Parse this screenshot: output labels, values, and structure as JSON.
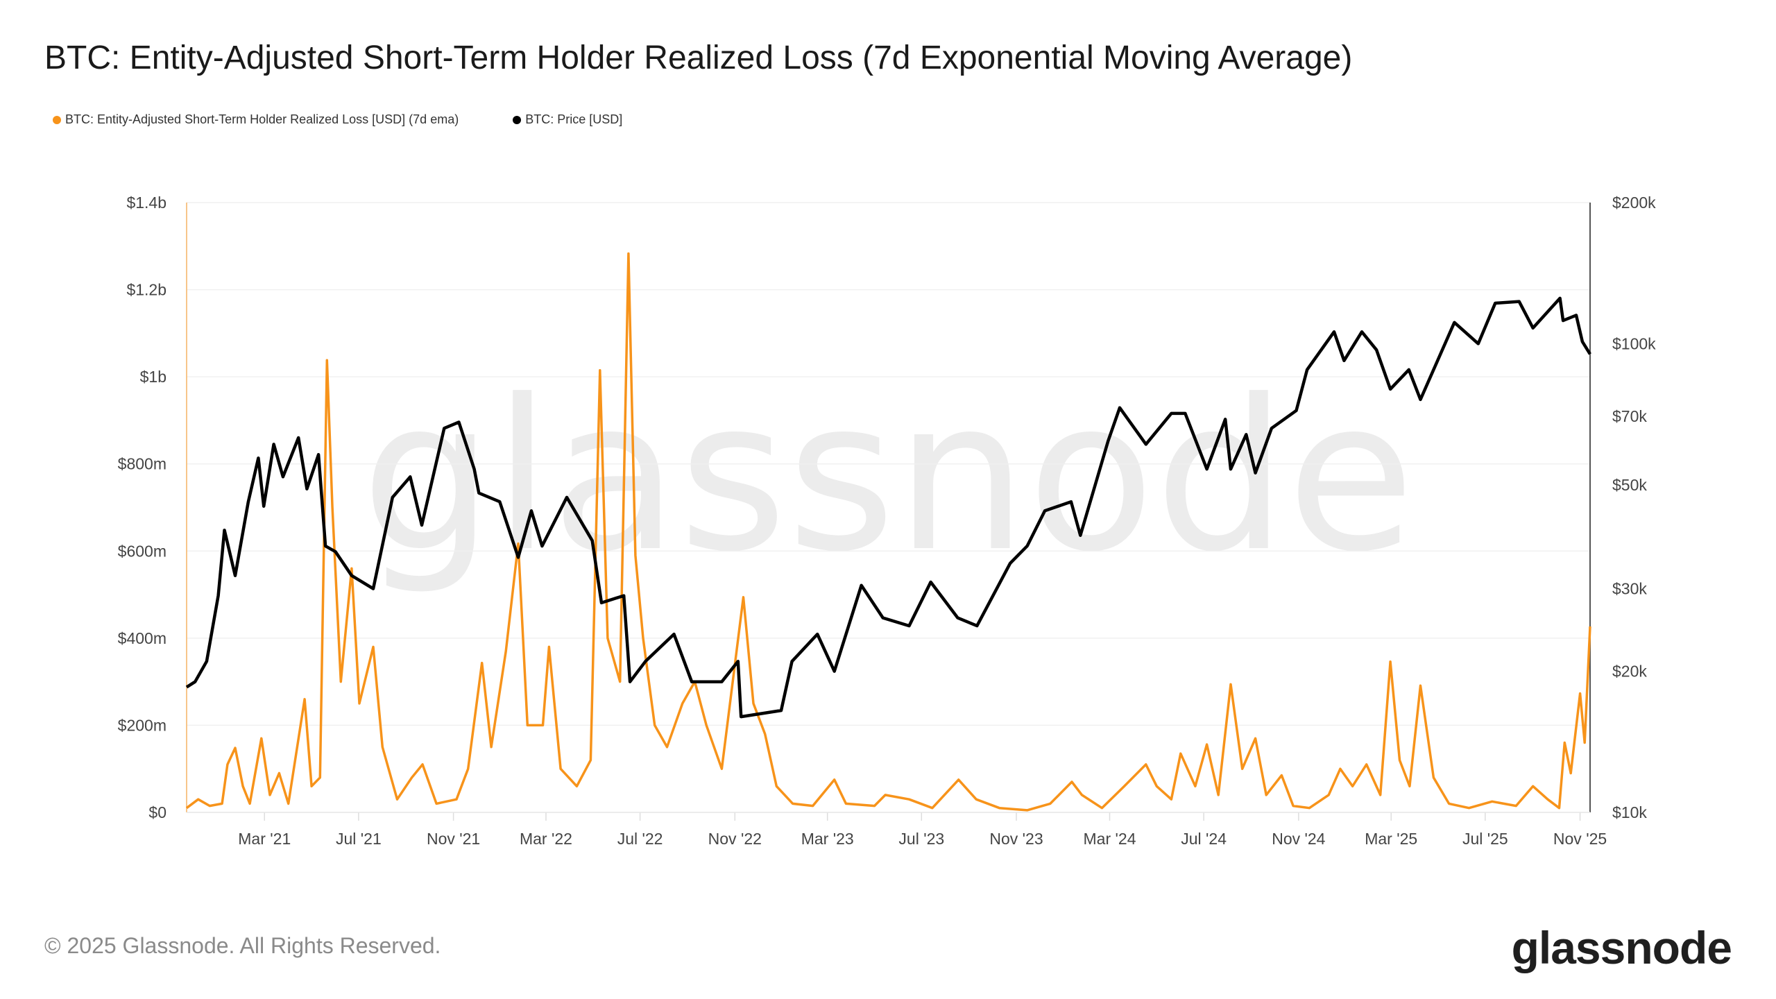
{
  "title": "BTC: Entity-Adjusted Short-Term Holder Realized Loss (7d Exponential Moving Average)",
  "footer": "© 2025 Glassnode. All Rights Reserved.",
  "logo": "glassnode",
  "watermark": "glassnode",
  "chart_data": {
    "type": "line",
    "title": "BTC: Entity-Adjusted Short-Term Holder Realized Loss (7d Exponential Moving Average)",
    "legend_placement": "top-left",
    "grid": true,
    "x_range": [
      "2020-11-20",
      "2025-11-14"
    ],
    "x_ticks": [
      {
        "date": "2021-03-01",
        "label": "Mar '21"
      },
      {
        "date": "2021-07-01",
        "label": "Jul '21"
      },
      {
        "date": "2021-11-01",
        "label": "Nov '21"
      },
      {
        "date": "2022-03-01",
        "label": "Mar '22"
      },
      {
        "date": "2022-07-01",
        "label": "Jul '22"
      },
      {
        "date": "2022-11-01",
        "label": "Nov '22"
      },
      {
        "date": "2023-03-01",
        "label": "Mar '23"
      },
      {
        "date": "2023-07-01",
        "label": "Jul '23"
      },
      {
        "date": "2023-11-01",
        "label": "Nov '23"
      },
      {
        "date": "2024-03-01",
        "label": "Mar '24"
      },
      {
        "date": "2024-07-01",
        "label": "Jul '24"
      },
      {
        "date": "2024-11-01",
        "label": "Nov '24"
      },
      {
        "date": "2025-03-01",
        "label": "Mar '25"
      },
      {
        "date": "2025-07-01",
        "label": "Jul '25"
      },
      {
        "date": "2025-11-01",
        "label": "Nov '25"
      }
    ],
    "y_left": {
      "unit": "USD millions",
      "range": [
        0,
        1400
      ],
      "scale": "linear",
      "ticks": [
        {
          "v": 0,
          "label": "$0"
        },
        {
          "v": 200,
          "label": "$200m"
        },
        {
          "v": 400,
          "label": "$400m"
        },
        {
          "v": 600,
          "label": "$600m"
        },
        {
          "v": 800,
          "label": "$800m"
        },
        {
          "v": 1000,
          "label": "$1b"
        },
        {
          "v": 1200,
          "label": "$1.2b"
        },
        {
          "v": 1400,
          "label": "$1.4b"
        }
      ]
    },
    "y_right": {
      "unit": "USD",
      "range": [
        10000,
        200000
      ],
      "scale": "log",
      "ticks": [
        {
          "v": 10000,
          "label": "$10k"
        },
        {
          "v": 20000,
          "label": "$20k"
        },
        {
          "v": 30000,
          "label": "$30k"
        },
        {
          "v": 50000,
          "label": "$50k"
        },
        {
          "v": 70000,
          "label": "$70k"
        },
        {
          "v": 100000,
          "label": "$100k"
        },
        {
          "v": 200000,
          "label": "$200k"
        }
      ]
    },
    "series": [
      {
        "name": "BTC: Entity-Adjusted Short-Term Holder Realized Loss [USD] (7d ema)",
        "color": "#f7931a",
        "axis": "left",
        "points": [
          [
            "2020-11-20",
            10
          ],
          [
            "2020-12-05",
            30
          ],
          [
            "2020-12-20",
            15
          ],
          [
            "2021-01-05",
            20
          ],
          [
            "2021-01-12",
            110
          ],
          [
            "2021-01-22",
            148
          ],
          [
            "2021-02-01",
            60
          ],
          [
            "2021-02-10",
            20
          ],
          [
            "2021-02-25",
            170
          ],
          [
            "2021-03-08",
            40
          ],
          [
            "2021-03-20",
            90
          ],
          [
            "2021-04-01",
            20
          ],
          [
            "2021-04-22",
            260
          ],
          [
            "2021-05-01",
            60
          ],
          [
            "2021-05-12",
            80
          ],
          [
            "2021-05-21",
            1038
          ],
          [
            "2021-05-28",
            700
          ],
          [
            "2021-06-08",
            300
          ],
          [
            "2021-06-22",
            560
          ],
          [
            "2021-07-02",
            250
          ],
          [
            "2021-07-20",
            380
          ],
          [
            "2021-08-01",
            150
          ],
          [
            "2021-08-20",
            30
          ],
          [
            "2021-09-08",
            80
          ],
          [
            "2021-09-22",
            110
          ],
          [
            "2021-10-10",
            20
          ],
          [
            "2021-11-05",
            30
          ],
          [
            "2021-11-20",
            100
          ],
          [
            "2021-12-08",
            343
          ],
          [
            "2021-12-20",
            150
          ],
          [
            "2022-01-08",
            370
          ],
          [
            "2022-01-24",
            617
          ],
          [
            "2022-02-05",
            200
          ],
          [
            "2022-02-25",
            200
          ],
          [
            "2022-03-05",
            380
          ],
          [
            "2022-03-20",
            100
          ],
          [
            "2022-04-10",
            60
          ],
          [
            "2022-04-28",
            120
          ],
          [
            "2022-05-10",
            1015
          ],
          [
            "2022-05-20",
            400
          ],
          [
            "2022-06-05",
            300
          ],
          [
            "2022-06-16",
            1283
          ],
          [
            "2022-06-25",
            590
          ],
          [
            "2022-07-05",
            400
          ],
          [
            "2022-07-20",
            200
          ],
          [
            "2022-08-05",
            150
          ],
          [
            "2022-08-25",
            250
          ],
          [
            "2022-09-10",
            300
          ],
          [
            "2022-09-25",
            200
          ],
          [
            "2022-10-15",
            100
          ],
          [
            "2022-11-12",
            494
          ],
          [
            "2022-11-25",
            250
          ],
          [
            "2022-12-10",
            180
          ],
          [
            "2022-12-25",
            60
          ],
          [
            "2023-01-15",
            20
          ],
          [
            "2023-02-10",
            15
          ],
          [
            "2023-03-10",
            75
          ],
          [
            "2023-03-25",
            20
          ],
          [
            "2023-05-01",
            15
          ],
          [
            "2023-05-15",
            40
          ],
          [
            "2023-06-15",
            30
          ],
          [
            "2023-07-15",
            10
          ],
          [
            "2023-08-18",
            75
          ],
          [
            "2023-09-10",
            30
          ],
          [
            "2023-10-10",
            10
          ],
          [
            "2023-11-15",
            5
          ],
          [
            "2023-12-15",
            20
          ],
          [
            "2024-01-12",
            70
          ],
          [
            "2024-01-25",
            40
          ],
          [
            "2024-02-20",
            10
          ],
          [
            "2024-03-20",
            60
          ],
          [
            "2024-04-17",
            110
          ],
          [
            "2024-05-01",
            60
          ],
          [
            "2024-05-20",
            30
          ],
          [
            "2024-06-01",
            135
          ],
          [
            "2024-06-20",
            60
          ],
          [
            "2024-07-05",
            156
          ],
          [
            "2024-07-20",
            40
          ],
          [
            "2024-08-05",
            294
          ],
          [
            "2024-08-20",
            100
          ],
          [
            "2024-09-06",
            170
          ],
          [
            "2024-09-20",
            40
          ],
          [
            "2024-10-10",
            85
          ],
          [
            "2024-10-25",
            15
          ],
          [
            "2024-11-15",
            10
          ],
          [
            "2024-12-10",
            40
          ],
          [
            "2024-12-25",
            100
          ],
          [
            "2025-01-10",
            60
          ],
          [
            "2025-01-28",
            110
          ],
          [
            "2025-02-15",
            40
          ],
          [
            "2025-02-28",
            346
          ],
          [
            "2025-03-12",
            120
          ],
          [
            "2025-03-25",
            60
          ],
          [
            "2025-04-08",
            291
          ],
          [
            "2025-04-25",
            80
          ],
          [
            "2025-05-15",
            20
          ],
          [
            "2025-06-10",
            10
          ],
          [
            "2025-07-10",
            25
          ],
          [
            "2025-08-10",
            15
          ],
          [
            "2025-09-01",
            60
          ],
          [
            "2025-09-20",
            30
          ],
          [
            "2025-10-05",
            10
          ],
          [
            "2025-10-12",
            160
          ],
          [
            "2025-10-20",
            90
          ],
          [
            "2025-11-01",
            273
          ],
          [
            "2025-11-07",
            160
          ],
          [
            "2025-11-14",
            427
          ]
        ]
      },
      {
        "name": "BTC: Price [USD]",
        "color": "#000000",
        "axis": "right",
        "points": [
          [
            "2020-11-20",
            18500
          ],
          [
            "2020-12-01",
            19000
          ],
          [
            "2020-12-16",
            21000
          ],
          [
            "2020-12-31",
            29000
          ],
          [
            "2021-01-08",
            40000
          ],
          [
            "2021-01-22",
            32000
          ],
          [
            "2021-02-08",
            46000
          ],
          [
            "2021-02-21",
            57000
          ],
          [
            "2021-02-28",
            45000
          ],
          [
            "2021-03-13",
            61000
          ],
          [
            "2021-03-25",
            52000
          ],
          [
            "2021-04-14",
            63000
          ],
          [
            "2021-04-25",
            49000
          ],
          [
            "2021-05-10",
            58000
          ],
          [
            "2021-05-19",
            37000
          ],
          [
            "2021-06-01",
            36000
          ],
          [
            "2021-06-22",
            32000
          ],
          [
            "2021-07-20",
            30000
          ],
          [
            "2021-08-14",
            47000
          ],
          [
            "2021-09-06",
            52000
          ],
          [
            "2021-09-21",
            41000
          ],
          [
            "2021-10-20",
            66000
          ],
          [
            "2021-11-08",
            68000
          ],
          [
            "2021-11-28",
            54000
          ],
          [
            "2021-12-04",
            48000
          ],
          [
            "2021-12-31",
            46000
          ],
          [
            "2022-01-24",
            35000
          ],
          [
            "2022-02-10",
            44000
          ],
          [
            "2022-02-24",
            37000
          ],
          [
            "2022-03-28",
            47000
          ],
          [
            "2022-04-30",
            38000
          ],
          [
            "2022-05-12",
            28000
          ],
          [
            "2022-06-10",
            29000
          ],
          [
            "2022-06-18",
            19000
          ],
          [
            "2022-07-08",
            21000
          ],
          [
            "2022-08-14",
            24000
          ],
          [
            "2022-09-06",
            19000
          ],
          [
            "2022-10-15",
            19000
          ],
          [
            "2022-11-05",
            21000
          ],
          [
            "2022-11-09",
            16000
          ],
          [
            "2022-12-31",
            16500
          ],
          [
            "2023-01-14",
            21000
          ],
          [
            "2023-02-16",
            24000
          ],
          [
            "2023-03-10",
            20000
          ],
          [
            "2023-04-14",
            30500
          ],
          [
            "2023-05-12",
            26000
          ],
          [
            "2023-06-15",
            25000
          ],
          [
            "2023-07-13",
            31000
          ],
          [
            "2023-08-17",
            26000
          ],
          [
            "2023-09-11",
            25000
          ],
          [
            "2023-10-24",
            34000
          ],
          [
            "2023-11-15",
            37000
          ],
          [
            "2023-12-08",
            44000
          ],
          [
            "2024-01-11",
            46000
          ],
          [
            "2024-01-23",
            39000
          ],
          [
            "2024-02-28",
            62000
          ],
          [
            "2024-03-14",
            73000
          ],
          [
            "2024-04-17",
            61000
          ],
          [
            "2024-05-20",
            71000
          ],
          [
            "2024-06-07",
            71000
          ],
          [
            "2024-07-05",
            54000
          ],
          [
            "2024-07-29",
            69000
          ],
          [
            "2024-08-05",
            54000
          ],
          [
            "2024-08-25",
            64000
          ],
          [
            "2024-09-06",
            53000
          ],
          [
            "2024-09-27",
            66000
          ],
          [
            "2024-10-29",
            72000
          ],
          [
            "2024-11-12",
            88000
          ],
          [
            "2024-12-17",
            106000
          ],
          [
            "2024-12-30",
            92000
          ],
          [
            "2025-01-22",
            106000
          ],
          [
            "2025-02-10",
            97000
          ],
          [
            "2025-02-28",
            80000
          ],
          [
            "2025-03-24",
            88000
          ],
          [
            "2025-04-08",
            76000
          ],
          [
            "2025-05-22",
            111000
          ],
          [
            "2025-06-22",
            100000
          ],
          [
            "2025-07-14",
            122000
          ],
          [
            "2025-08-14",
            123000
          ],
          [
            "2025-09-01",
            108000
          ],
          [
            "2025-10-06",
            125000
          ],
          [
            "2025-10-10",
            112000
          ],
          [
            "2025-10-27",
            115000
          ],
          [
            "2025-11-04",
            101000
          ],
          [
            "2025-11-14",
            95000
          ]
        ]
      }
    ]
  }
}
